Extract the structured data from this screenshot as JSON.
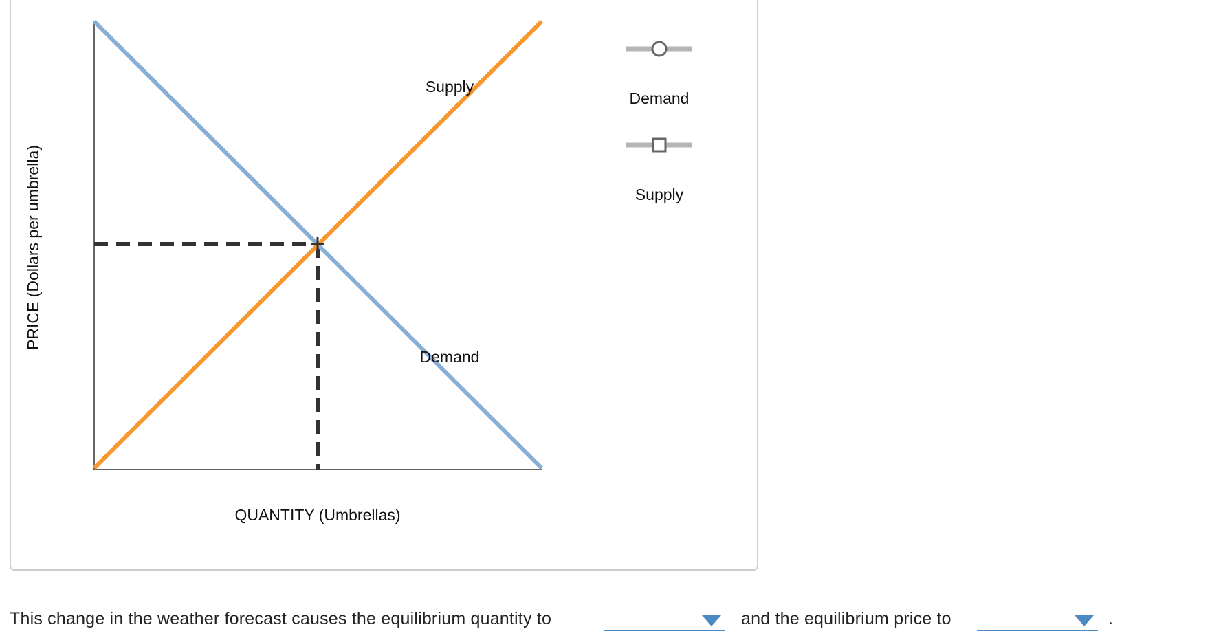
{
  "graph": {
    "y_axis_title": "PRICE (Dollars per umbrella)",
    "x_axis_title": "QUANTITY (Umbrellas)",
    "curve_labels": {
      "supply": "Supply",
      "demand": "Demand"
    }
  },
  "legend": {
    "items": [
      "Demand",
      "Supply"
    ]
  },
  "question": {
    "text_before": "This change in the weather forecast causes the equilibrium quantity to",
    "text_middle": "and the equilibrium price to",
    "text_end": "."
  }
}
